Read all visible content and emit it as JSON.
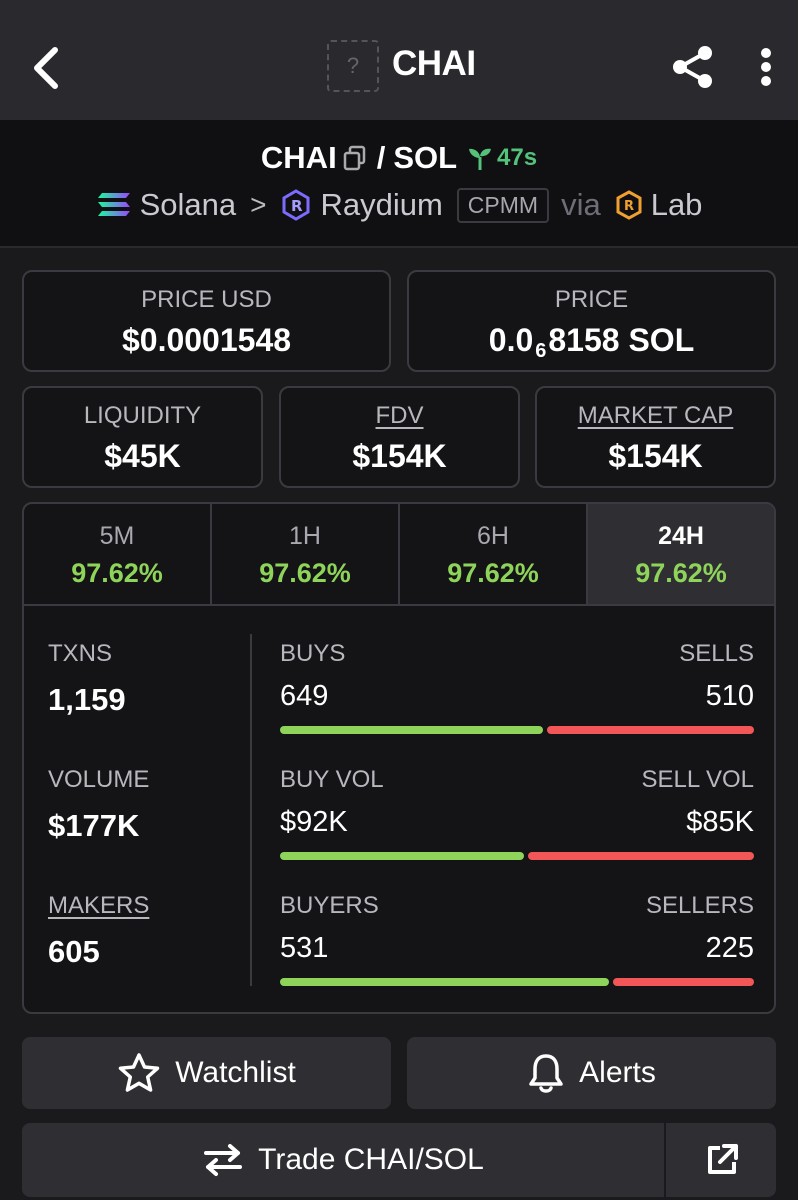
{
  "header": {
    "title": "CHAI",
    "logo_placeholder": "?"
  },
  "pair": {
    "base": "CHAI",
    "separator": "/",
    "quote": "SOL",
    "age": "47s",
    "chain": "Solana",
    "dex": "Raydium",
    "pool_type": "CPMM",
    "via_label": "via",
    "launchpad": "Lab",
    "chevron": ">"
  },
  "stats": {
    "price_usd_label": "PRICE USD",
    "price_usd": "$0.0001548",
    "price_label": "PRICE",
    "price_prefix": "0.0",
    "price_zeros": "6",
    "price_suffix": "8158 SOL",
    "liquidity_label": "LIQUIDITY",
    "liquidity": "$45K",
    "fdv_label": "FDV",
    "fdv": "$154K",
    "market_cap_label": "MARKET CAP",
    "market_cap": "$154K"
  },
  "timeframes": [
    {
      "label": "5M",
      "change": "97.62%"
    },
    {
      "label": "1H",
      "change": "97.62%"
    },
    {
      "label": "6H",
      "change": "97.62%"
    },
    {
      "label": "24H",
      "change": "97.62%"
    }
  ],
  "metrics": {
    "txns_label": "TXNS",
    "txns": "1,159",
    "volume_label": "VOLUME",
    "volume": "$177K",
    "makers_label": "MAKERS",
    "makers": "605"
  },
  "splits": {
    "buys_label": "BUYS",
    "buys": "649",
    "sells_label": "SELLS",
    "sells": "510",
    "buys_fraction": 0.56,
    "buy_vol_label": "BUY VOL",
    "buy_vol": "$92K",
    "sell_vol_label": "SELL VOL",
    "sell_vol": "$85K",
    "buy_vol_fraction": 0.52,
    "buyers_label": "BUYERS",
    "buyers": "531",
    "sellers_label": "SELLERS",
    "sellers": "225",
    "buyers_fraction": 0.7
  },
  "actions": {
    "watchlist": "Watchlist",
    "alerts": "Alerts",
    "trade": "Trade CHAI/SOL"
  },
  "colors": {
    "positive": "#8fd45a",
    "negative": "#f25656",
    "age": "#54c27a"
  }
}
